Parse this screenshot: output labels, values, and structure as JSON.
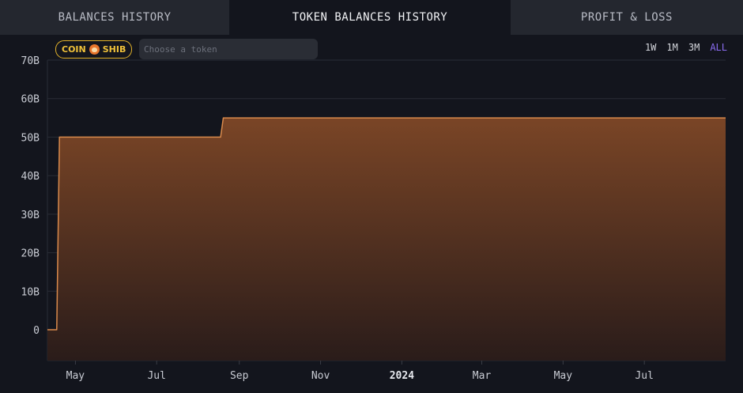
{
  "tabs": [
    {
      "label": "BALANCES HISTORY",
      "active": false
    },
    {
      "label": "TOKEN BALANCES HISTORY",
      "active": true
    },
    {
      "label": "PROFIT & LOSS",
      "active": false
    }
  ],
  "toolbar": {
    "coin_prefix": "COIN",
    "coin_icon": "shib-icon",
    "coin_symbol": "SHIB",
    "token_placeholder": "Choose a token",
    "ranges": [
      "1W",
      "1M",
      "3M",
      "ALL"
    ],
    "active_range": "ALL"
  },
  "colors": {
    "line": "#d98a4c",
    "fill_top": "#7a4526",
    "fill_bottom": "#2a1c1a",
    "accent": "#8a6cf0",
    "coin_badge": "#f0c23a"
  },
  "chart_data": {
    "type": "area",
    "x_axis_type": "date",
    "y_unit_suffix": "B",
    "xlim": [
      "2023-04-10",
      "2024-08-31"
    ],
    "ylim": [
      -8,
      70
    ],
    "yticks": [
      0,
      10,
      20,
      30,
      40,
      50,
      60,
      70
    ],
    "ytick_labels": [
      "0",
      "10B",
      "20B",
      "30B",
      "40B",
      "50B",
      "60B",
      "70B"
    ],
    "xticks": [
      "2023-05-01",
      "2023-07-01",
      "2023-09-01",
      "2023-11-01",
      "2024-01-01",
      "2024-03-01",
      "2024-05-01",
      "2024-07-01"
    ],
    "xtick_labels": [
      "May",
      "Jul",
      "Sep",
      "Nov",
      "2024",
      "Mar",
      "May",
      "Jul"
    ],
    "xtick_bold": [
      false,
      false,
      false,
      false,
      true,
      false,
      false,
      false
    ],
    "grid": true,
    "legend": "none",
    "series": [
      {
        "points": [
          [
            "2023-04-10",
            0
          ],
          [
            "2023-04-17",
            0
          ],
          [
            "2023-04-19",
            50
          ],
          [
            "2023-08-18",
            50
          ],
          [
            "2023-08-20",
            55
          ],
          [
            "2024-08-31",
            55
          ]
        ]
      }
    ]
  }
}
